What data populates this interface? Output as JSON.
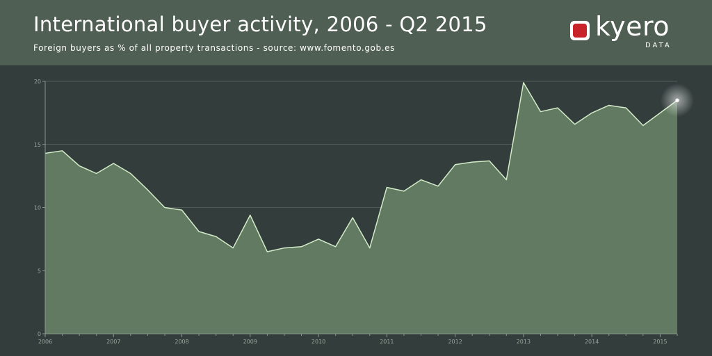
{
  "header": {
    "title": "International buyer activity, 2006 - Q2 2015",
    "subtitle": "Foreign buyers as % of all property transactions - source: www.fomento.gob.es"
  },
  "logo": {
    "word": "kyero",
    "sub": "DATA"
  },
  "colors": {
    "header_bg": "#505f53",
    "chart_bg": "#333d3c",
    "area_fill": "#617a61",
    "line": "#d4ecc9"
  },
  "chart_data": {
    "type": "area",
    "title": "International buyer activity, 2006 - Q2 2015",
    "subtitle": "Foreign buyers as % of all property transactions - source: www.fomento.gob.es",
    "xlabel": "",
    "ylabel": "",
    "ylim": [
      0,
      20
    ],
    "yticks": [
      0,
      5,
      10,
      15,
      20
    ],
    "xticks": [
      "2006",
      "2007",
      "2008",
      "2009",
      "2010",
      "2011",
      "2012",
      "2013",
      "2014",
      "2015"
    ],
    "grid": true,
    "x": [
      "2006 Q1",
      "2006 Q2",
      "2006 Q3",
      "2006 Q4",
      "2007 Q1",
      "2007 Q2",
      "2007 Q3",
      "2007 Q4",
      "2008 Q1",
      "2008 Q2",
      "2008 Q3",
      "2008 Q4",
      "2009 Q1",
      "2009 Q2",
      "2009 Q3",
      "2009 Q4",
      "2010 Q1",
      "2010 Q2",
      "2010 Q3",
      "2010 Q4",
      "2011 Q1",
      "2011 Q2",
      "2011 Q3",
      "2011 Q4",
      "2012 Q1",
      "2012 Q2",
      "2012 Q3",
      "2012 Q4",
      "2013 Q1",
      "2013 Q2",
      "2013 Q3",
      "2013 Q4",
      "2014 Q1",
      "2014 Q2",
      "2014 Q3",
      "2014 Q4",
      "2015 Q1",
      "2015 Q2"
    ],
    "values": [
      14.3,
      14.5,
      13.3,
      12.7,
      13.5,
      12.7,
      11.4,
      10.0,
      9.8,
      8.1,
      7.7,
      6.8,
      9.4,
      6.5,
      6.8,
      6.9,
      7.5,
      6.9,
      9.2,
      6.8,
      11.6,
      11.3,
      12.2,
      11.7,
      13.4,
      13.6,
      13.7,
      12.2,
      19.9,
      17.6,
      17.9,
      16.6,
      17.5,
      18.1,
      17.9,
      16.5,
      17.5,
      18.5
    ]
  }
}
